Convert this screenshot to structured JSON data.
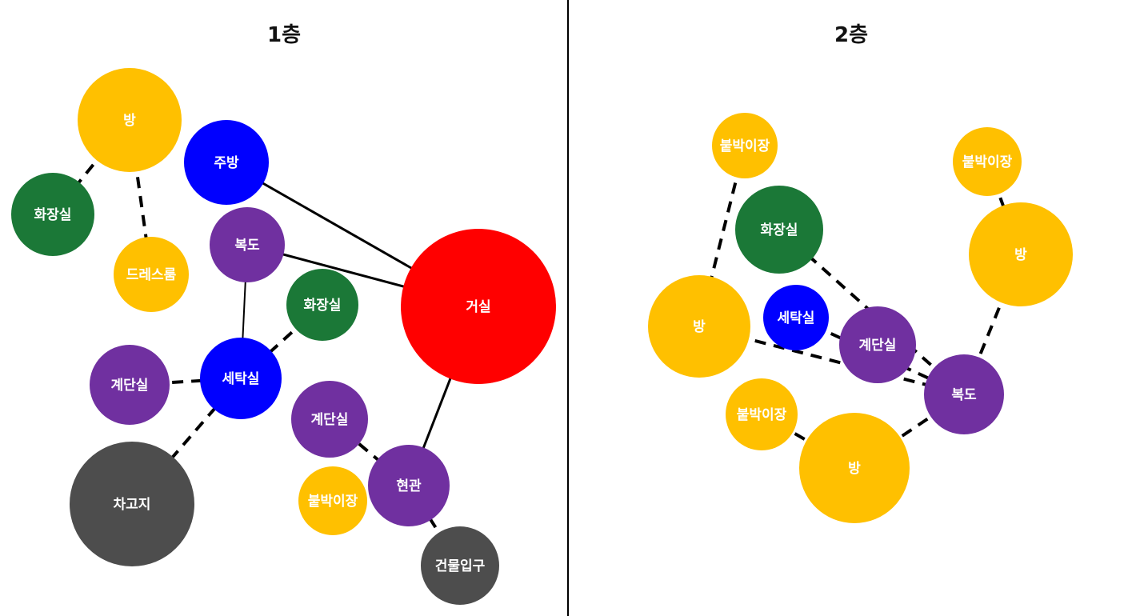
{
  "colors": {
    "yellow": "#FFC000",
    "green": "#1B7837",
    "blue": "#0000FF",
    "purple": "#7030A0",
    "red": "#FF0000",
    "gray": "#4D4D4D",
    "text": "#FFFFFF"
  },
  "floors": [
    {
      "title": "1층",
      "nodes": [
        {
          "id": "f1-bang",
          "label": "방",
          "color": "yellow"
        },
        {
          "id": "f1-hwajang-a",
          "label": "화장실",
          "color": "green"
        },
        {
          "id": "f1-dress",
          "label": "드레스룸",
          "color": "yellow"
        },
        {
          "id": "f1-jubang",
          "label": "주방",
          "color": "blue"
        },
        {
          "id": "f1-bokdo",
          "label": "복도",
          "color": "purple"
        },
        {
          "id": "f1-hwajang-b",
          "label": "화장실",
          "color": "green"
        },
        {
          "id": "f1-geosil",
          "label": "거실",
          "color": "red"
        },
        {
          "id": "f1-gyedan-a",
          "label": "계단실",
          "color": "purple"
        },
        {
          "id": "f1-setak",
          "label": "세탁실",
          "color": "blue"
        },
        {
          "id": "f1-gyedan-b",
          "label": "계단실",
          "color": "purple"
        },
        {
          "id": "f1-chago",
          "label": "차고지",
          "color": "gray"
        },
        {
          "id": "f1-buliv",
          "label": "붙박이장",
          "color": "yellow"
        },
        {
          "id": "f1-hyeon",
          "label": "현관",
          "color": "purple"
        },
        {
          "id": "f1-ipgu",
          "label": "건물입구",
          "color": "gray"
        }
      ],
      "edges": [
        {
          "from": "f1-bang",
          "to": "f1-hwajang-a",
          "style": "dashed"
        },
        {
          "from": "f1-bang",
          "to": "f1-dress",
          "style": "dashed"
        },
        {
          "from": "f1-jubang",
          "to": "f1-geosil",
          "style": "solid"
        },
        {
          "from": "f1-bokdo",
          "to": "f1-geosil",
          "style": "solid"
        },
        {
          "from": "f1-bokdo",
          "to": "f1-setak",
          "style": "solid"
        },
        {
          "from": "f1-setak",
          "to": "f1-hwajang-b",
          "style": "dashed"
        },
        {
          "from": "f1-setak",
          "to": "f1-gyedan-a",
          "style": "dashed"
        },
        {
          "from": "f1-setak",
          "to": "f1-chago",
          "style": "dashed"
        },
        {
          "from": "f1-geosil",
          "to": "f1-hyeon",
          "style": "solid"
        },
        {
          "from": "f1-gyedan-b",
          "to": "f1-hyeon",
          "style": "dashed"
        },
        {
          "from": "f1-buliv",
          "to": "f1-hyeon",
          "style": "dashed"
        },
        {
          "from": "f1-hyeon",
          "to": "f1-ipgu",
          "style": "dashed"
        }
      ]
    },
    {
      "title": "2층",
      "nodes": [
        {
          "id": "f2-buliv-a",
          "label": "붙박이장",
          "color": "yellow"
        },
        {
          "id": "f2-buliv-b",
          "label": "붙박이장",
          "color": "yellow"
        },
        {
          "id": "f2-hwajang",
          "label": "화장실",
          "color": "green"
        },
        {
          "id": "f2-bang-r",
          "label": "방",
          "color": "yellow"
        },
        {
          "id": "f2-bang-l",
          "label": "방",
          "color": "yellow"
        },
        {
          "id": "f2-setak",
          "label": "세탁실",
          "color": "blue"
        },
        {
          "id": "f2-gyedan",
          "label": "계단실",
          "color": "purple"
        },
        {
          "id": "f2-bokdo",
          "label": "복도",
          "color": "purple"
        },
        {
          "id": "f2-buliv-c",
          "label": "붙박이장",
          "color": "yellow"
        },
        {
          "id": "f2-bang-b",
          "label": "방",
          "color": "yellow"
        }
      ],
      "edges": [
        {
          "from": "f2-buliv-a",
          "to": "f2-bang-l",
          "style": "dashed"
        },
        {
          "from": "f2-buliv-b",
          "to": "f2-bang-r",
          "style": "dashed"
        },
        {
          "from": "f2-hwajang",
          "to": "f2-bokdo",
          "style": "dashed"
        },
        {
          "from": "f2-bang-l",
          "to": "f2-bokdo",
          "style": "dashed"
        },
        {
          "from": "f2-setak",
          "to": "f2-bokdo",
          "style": "dashed"
        },
        {
          "from": "f2-bang-r",
          "to": "f2-bokdo",
          "style": "dashed"
        },
        {
          "from": "f2-buliv-c",
          "to": "f2-bang-b",
          "style": "dashed"
        },
        {
          "from": "f2-bang-b",
          "to": "f2-bokdo",
          "style": "dashed"
        }
      ]
    }
  ]
}
